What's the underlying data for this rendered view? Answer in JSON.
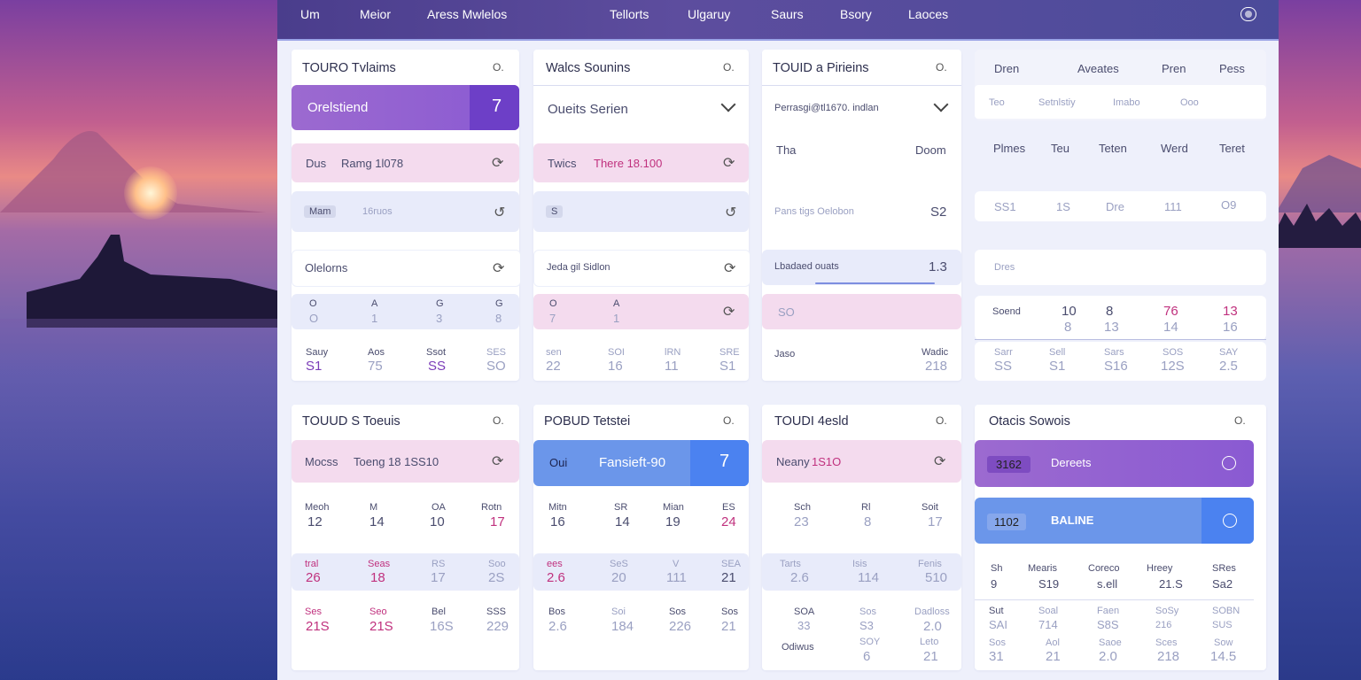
{
  "nav": {
    "items": [
      "Um",
      "Meior",
      "Aress Mwlelos",
      "Tellorts",
      "Ulgaruy",
      "Saurs",
      "Bsory",
      "Laoces"
    ]
  },
  "colors": {
    "accent_purple": "#8a5ad2",
    "accent_blue": "#6b96ea",
    "pink_row": "#f4dbee",
    "lavender_row": "#e8ebfa",
    "highlight": "#c0317e"
  },
  "icons": {
    "qicon": "O.",
    "refresh": "⟳",
    "arrow": "⌄",
    "redo": "↺"
  },
  "cards": {
    "c1": {
      "title": "TOURO Tvlaims",
      "btn": "Orelstiend",
      "btn_icon": "7",
      "r1a": "Dus",
      "r1b": "Ramg 1l078",
      "r2a": "Mam",
      "r2b": "16ruos",
      "r3": "Olelorns",
      "grid_h": [
        "O",
        "A",
        "G",
        "G"
      ],
      "grid_v": [
        "O",
        "1",
        "3",
        "8"
      ],
      "stat_h": [
        "Sauy",
        "Aos",
        "Ssot",
        "SES"
      ],
      "stat_v": [
        "S1",
        "75",
        "SS",
        "SO"
      ]
    },
    "c2": {
      "title": "Walcs Sounins",
      "dropdown": "Oueits Serien",
      "r1a": "Twics",
      "r1b": "There 18.100",
      "r2a": "S",
      "r3": "Jeda gil Sidlon",
      "grid_h": [
        "O",
        "A"
      ],
      "grid_v": [
        "7",
        "1"
      ],
      "stat_h": [
        "sen",
        "SOI",
        "lRN",
        "SRE"
      ],
      "stat_v": [
        "22",
        "16",
        "11",
        "S1"
      ]
    },
    "c3": {
      "title": "TOUID a Pirieins",
      "dropdown": "Perrasgi@tl1670. indlan",
      "h_left": "Tha",
      "h_right": "Doom",
      "r2": "Pans tigs Oelobon",
      "r2v": "S2",
      "r3": "Lbadaed ouats",
      "r3v": "1.3",
      "r4": "SO",
      "r5a": "Jaso",
      "r5b": "Wadic",
      "r5v": "218"
    },
    "c4": {
      "hdr": [
        "Dren",
        "Aveates",
        "Pren",
        "Pess"
      ],
      "sub": [
        "Teo",
        "Setnlstiy",
        "Imabo",
        "Ooo"
      ],
      "cols": [
        "Plmes",
        "Teu",
        "Teten",
        "Werd",
        "Teret"
      ],
      "r1": [
        "SS1",
        "1S",
        "Dre",
        "111",
        "O9"
      ],
      "r2": "Dres",
      "score_lbl": "Soend",
      "score_a": [
        "10",
        "8",
        "76",
        "13"
      ],
      "score_b": [
        "8",
        "13",
        "14",
        "16"
      ],
      "stat_h": [
        "Sarr",
        "Sell",
        "Sars",
        "SOS",
        "SAY"
      ],
      "stat_v": [
        "SS",
        "S1",
        "S16",
        "12S",
        "2.5"
      ]
    },
    "c5": {
      "title": "TOUUD S Toeuis",
      "r1a": "Mocss",
      "r1b": "Toeng 18 1SS10",
      "h": [
        "Meoh",
        "M",
        "OA",
        "Rotn"
      ],
      "v": [
        "12",
        "14",
        "10",
        "17"
      ],
      "p_h": [
        "tral",
        "Seas",
        "RS",
        "Soo"
      ],
      "p_v": [
        "26",
        "18",
        "17",
        "2S"
      ],
      "b_h": [
        "Ses",
        "Seo",
        "Bel",
        "SSS"
      ],
      "b_v": [
        "21S",
        "21S",
        "16S",
        "229"
      ]
    },
    "c6": {
      "title": "POBUD Tetstei",
      "btn_a": "Oui",
      "btn_b": "Fansieft-90",
      "btn_icon": "7",
      "h": [
        "Mitn",
        "SR",
        "Mian",
        "ES"
      ],
      "v": [
        "16",
        "14",
        "19",
        "24"
      ],
      "p_h": [
        "ees",
        "SeS",
        "V",
        "SEA"
      ],
      "p_v": [
        "2.6",
        "20",
        "111",
        "21"
      ],
      "b_h": [
        "Bos",
        "Soi",
        "Sos",
        "Sos"
      ],
      "b_v": [
        "2.6",
        "184",
        "226",
        "21"
      ]
    },
    "c7": {
      "title": "TOUDI 4esld",
      "r1a": "Neany",
      "r1b": "1S1O",
      "h": [
        "Sch",
        "Rl",
        "Soit"
      ],
      "v": [
        "23",
        "8",
        "17"
      ],
      "p_h": [
        "Tarts",
        "Isis",
        "Fenis"
      ],
      "p_v": [
        "2.6",
        "114",
        "510"
      ],
      "b_h": [
        "SOA",
        "Sos",
        "Dadloss"
      ],
      "b_v": [
        "33",
        "S3",
        "2.0"
      ],
      "b2_lbl": "Odiwus",
      "b2_h": [
        "SOY",
        "Leto"
      ],
      "b2_v": [
        "6",
        "21"
      ]
    },
    "c8": {
      "title": "Otacis Sowois",
      "btn1_a": "3162",
      "btn1_b": "Dereets",
      "btn2_a": "1102",
      "btn2_b": "BALINE",
      "h": [
        "Sh",
        "Mearis",
        "Coreco",
        "Hreey",
        "SRes"
      ],
      "v": [
        "9",
        "S19",
        "s.ell",
        "21.S",
        "Sa2"
      ],
      "m_h": [
        "Sut",
        "Soal",
        "Faen",
        "SoSy",
        "SOBN"
      ],
      "m_v": [
        "SAI",
        "714",
        "S8S",
        "216",
        "SUS"
      ],
      "b_h": [
        "Sos",
        "Aol",
        "Saoe",
        "Sces",
        "Sow"
      ],
      "b_v": [
        "31",
        "21",
        "2.0",
        "218",
        "14.5"
      ]
    }
  }
}
